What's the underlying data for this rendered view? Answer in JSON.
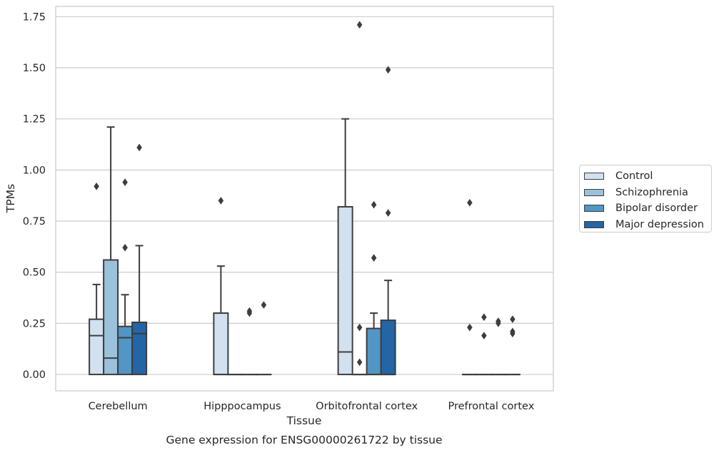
{
  "chart_data": {
    "type": "box",
    "xlabel": "Tissue",
    "ylabel": "TPMs",
    "caption": "Gene expression for ENSG00000261722 by tissue",
    "categories": [
      "Cerebellum",
      "Hipppocampus",
      "Orbitofrontal cortex",
      "Prefrontal cortex"
    ],
    "ylim": [
      -0.08,
      1.8
    ],
    "yticks": [
      "0.00",
      "0.25",
      "0.50",
      "0.75",
      "1.00",
      "1.25",
      "1.50",
      "1.75"
    ],
    "grid": true,
    "legend_position": "right",
    "series": [
      {
        "name": "Control",
        "color": "#d2e1f0",
        "boxes": [
          {
            "q1": 0,
            "median": 0.19,
            "q3": 0.27,
            "whisker_low": 0,
            "whisker_high": 0.44,
            "outliers": [
              0.92
            ]
          },
          {
            "q1": 0,
            "median": 0,
            "q3": 0.3,
            "whisker_low": 0,
            "whisker_high": 0.53,
            "outliers": [
              0.85
            ]
          },
          {
            "q1": 0,
            "median": 0.11,
            "q3": 0.82,
            "whisker_low": 0,
            "whisker_high": 1.25,
            "outliers": []
          },
          {
            "q1": 0,
            "median": 0,
            "q3": 0,
            "whisker_low": 0,
            "whisker_high": 0,
            "outliers": [
              0.84,
              0.23
            ]
          }
        ]
      },
      {
        "name": "Schizophrenia",
        "color": "#9ac2da",
        "boxes": [
          {
            "q1": 0,
            "median": 0.08,
            "q3": 0.56,
            "whisker_low": 0,
            "whisker_high": 1.21,
            "outliers": []
          },
          {
            "q1": 0,
            "median": 0,
            "q3": 0,
            "whisker_low": 0,
            "whisker_high": 0,
            "outliers": []
          },
          {
            "q1": 0,
            "median": 0,
            "q3": 0,
            "whisker_low": 0,
            "whisker_high": 0,
            "outliers": [
              1.71,
              0.23,
              0.06
            ]
          },
          {
            "q1": 0,
            "median": 0,
            "q3": 0,
            "whisker_low": 0,
            "whisker_high": 0,
            "outliers": [
              0.28,
              0.19
            ]
          }
        ]
      },
      {
        "name": "Bipolar disorder",
        "color": "#5196c4",
        "boxes": [
          {
            "q1": 0,
            "median": 0.18,
            "q3": 0.235,
            "whisker_low": 0,
            "whisker_high": 0.39,
            "outliers": [
              0.94,
              0.62
            ]
          },
          {
            "q1": 0,
            "median": 0,
            "q3": 0,
            "whisker_low": 0,
            "whisker_high": 0,
            "outliers": [
              0.31,
              0.3
            ]
          },
          {
            "q1": 0,
            "median": 0,
            "q3": 0.225,
            "whisker_low": 0,
            "whisker_high": 0.3,
            "outliers": [
              0.83,
              0.57
            ]
          },
          {
            "q1": 0,
            "median": 0,
            "q3": 0,
            "whisker_low": 0,
            "whisker_high": 0,
            "outliers": [
              0.26,
              0.25
            ]
          }
        ]
      },
      {
        "name": "Major depression",
        "color": "#2465a6",
        "boxes": [
          {
            "q1": 0,
            "median": 0.2,
            "q3": 0.255,
            "whisker_low": 0,
            "whisker_high": 0.63,
            "outliers": [
              1.11
            ]
          },
          {
            "q1": 0,
            "median": 0,
            "q3": 0,
            "whisker_low": 0,
            "whisker_high": 0,
            "outliers": [
              0.34
            ]
          },
          {
            "q1": 0,
            "median": 0,
            "q3": 0.265,
            "whisker_low": 0,
            "whisker_high": 0.46,
            "outliers": [
              1.49,
              0.79
            ]
          },
          {
            "q1": 0,
            "median": 0,
            "q3": 0,
            "whisker_low": 0,
            "whisker_high": 0,
            "outliers": [
              0.27,
              0.21,
              0.2
            ]
          }
        ]
      }
    ]
  }
}
